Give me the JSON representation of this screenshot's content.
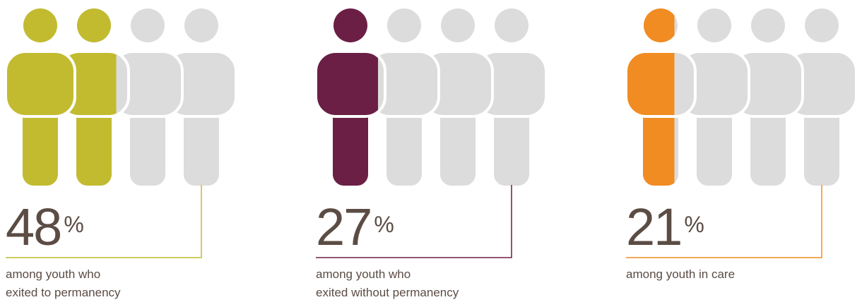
{
  "chart_data": [
    {
      "type": "pictograph",
      "value_label": "48",
      "unit": "%",
      "value": 48,
      "icons_total": 4,
      "color": "#c2bb30",
      "empty_color": "#dcdcdc",
      "caption": [
        "among youth who",
        "exited to permanency"
      ]
    },
    {
      "type": "pictograph",
      "value_label": "27",
      "unit": "%",
      "value": 27,
      "icons_total": 4,
      "color": "#6b1f45",
      "empty_color": "#dcdcdc",
      "caption": [
        "among youth who",
        "exited without permanency"
      ]
    },
    {
      "type": "pictograph",
      "value_label": "21",
      "unit": "%",
      "value": 21,
      "icons_total": 4,
      "color": "#f08c22",
      "empty_color": "#dcdcdc",
      "caption": [
        "among youth in care"
      ]
    }
  ]
}
